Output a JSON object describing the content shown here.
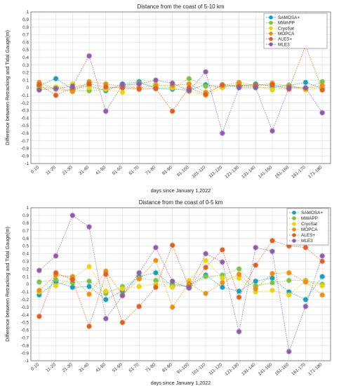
{
  "chart_data": [
    {
      "type": "line",
      "title": "Distance from the coast of 5-10 km",
      "xlabel": "days  since January 1,2022",
      "ylabel": "Difference between Retracking and Tidal Gauge(m)",
      "ylim": [
        -1,
        1
      ],
      "yticks": [
        "-1",
        "-0.9",
        "-0.8",
        "-0.7",
        "-0.6",
        "-0.5",
        "-0.4",
        "-0.3",
        "-0.2",
        "-0.1",
        "0",
        "0.1",
        "0.2",
        "0.3",
        "0.4",
        "0.5",
        "0.6",
        "0.7",
        "0.8",
        "0.9",
        "1"
      ],
      "grid": true,
      "legend_position": "top-right",
      "categories": [
        "0-10",
        "11-20",
        "21-30",
        "31-40",
        "41-50",
        "51-60",
        "61-70",
        "71-80",
        "81-90",
        "91-100",
        "101-110",
        "111-120",
        "121-130",
        "131-140",
        "141-150",
        "151-160",
        "161-170",
        "171-180"
      ],
      "series": [
        {
          "name": "SAMOSA+",
          "color": "#1f9bb5",
          "values": [
            0.03,
            0.12,
            -0.02,
            0.03,
            -0.04,
            0.05,
            0.08,
            -0.01,
            -0.02,
            -0.03,
            0.04,
            0.02,
            0.02,
            0.05,
            0.02,
            0.03,
            0.07,
            -0.01
          ]
        },
        {
          "name": "MWAPP",
          "color": "#7fbf4a",
          "values": [
            0.0,
            0.0,
            -0.04,
            -0.04,
            -0.02,
            0.02,
            0.06,
            0.0,
            0.0,
            0.12,
            0.02,
            0.01,
            0.04,
            0.01,
            0.0,
            0.03,
            -0.01,
            0.08
          ]
        },
        {
          "name": "CryoSat",
          "color": "#e8d21c",
          "values": [
            -0.02,
            0.01,
            0.05,
            0.0,
            -0.02,
            -0.06,
            0.05,
            0.05,
            0.0,
            -0.05,
            -0.1,
            0.0,
            0.05,
            0.02,
            -0.03,
            0.01,
            -0.03,
            0.0
          ]
        },
        {
          "name": "MOPCA",
          "color": "#e8901c",
          "values": [
            0.07,
            -0.02,
            -0.05,
            0.08,
            0.05,
            0.02,
            0.0,
            0.03,
            0.03,
            0.05,
            -0.06,
            0.03,
            0.07,
            0.03,
            0.06,
            0.02,
            -0.01,
            0.03
          ]
        },
        {
          "name": "ALES+",
          "color": "#d9622b",
          "values": [
            0.04,
            -0.1,
            0.0,
            0.05,
            0.01,
            0.0,
            -0.02,
            -0.01,
            -0.31,
            0.0,
            -0.09,
            0.04,
            0.02,
            0.03,
            0.04,
            -0.02,
            0.56,
            -0.03
          ]
        },
        {
          "name": "MLE3",
          "color": "#8e5ea8",
          "values": [
            -0.03,
            -0.01,
            0.02,
            0.42,
            -0.31,
            0.04,
            0.05,
            0.1,
            0.06,
            -0.04,
            0.21,
            -0.6,
            0.0,
            0.0,
            -0.57,
            0.0,
            0.0,
            -0.33
          ]
        }
      ]
    },
    {
      "type": "line",
      "title": "Distance from the coast of 0-5 km",
      "xlabel": "days  since January 1,2022",
      "ylabel": "Difference between Retracking and Tidal Gauge(m)",
      "ylim": [
        -1,
        1
      ],
      "yticks": [
        "-1",
        "-0.9",
        "-0.8",
        "-0.7",
        "-0.6",
        "-0.5",
        "-0.4",
        "-0.3",
        "-0.2",
        "-0.1",
        "0",
        "0.1",
        "0.2",
        "0.3",
        "0.4",
        "0.5",
        "0.6",
        "0.7",
        "0.8",
        "0.9",
        "1"
      ],
      "grid": true,
      "legend_position": "top-right",
      "categories": [
        "0-10",
        "11-20",
        "21-30",
        "31-40",
        "41-50",
        "51-60",
        "61-70",
        "71-80",
        "81-90",
        "91-100",
        "101-110",
        "111-120",
        "121-130",
        "131-140",
        "141-150",
        "151-160",
        "161-170",
        "171-180"
      ],
      "series": [
        {
          "name": "SAMOSA+",
          "color": "#1f9bb5",
          "values": [
            -0.14,
            0.03,
            -0.04,
            -0.03,
            -0.2,
            -0.09,
            0.1,
            0.15,
            -0.02,
            -0.02,
            0.12,
            -0.04,
            -0.09,
            0.04,
            0.08,
            -0.1,
            -0.2,
            0.1
          ]
        },
        {
          "name": "MWAPP",
          "color": "#7fbf4a",
          "values": [
            0.03,
            0.06,
            0.02,
            0.04,
            -0.12,
            -0.03,
            0.08,
            0.05,
            0.01,
            -0.04,
            0.1,
            0.12,
            0.2,
            -0.02,
            0.02,
            0.05,
            0.05,
            0.0
          ]
        },
        {
          "name": "CryoSat",
          "color": "#e8d21c",
          "values": [
            -0.1,
            -0.02,
            0.08,
            0.23,
            -0.09,
            -0.06,
            -0.03,
            0.0,
            -0.04,
            0.05,
            0.31,
            0.08,
            0.08,
            -0.1,
            -0.08,
            -0.14,
            0.04,
            -0.02
          ]
        },
        {
          "name": "MOPCA",
          "color": "#e8901c",
          "values": [
            -0.08,
            0.12,
            0.1,
            -0.13,
            0.17,
            -0.14,
            0.07,
            0.31,
            -0.3,
            0.01,
            -0.12,
            0.02,
            0.13,
            -0.06,
            0.14,
            0.15,
            0.03,
            -0.14
          ]
        },
        {
          "name": "ALES+",
          "color": "#d9622b",
          "values": [
            -0.42,
            0.15,
            0.06,
            -0.55,
            0.13,
            -0.5,
            -0.29,
            -0.04,
            0.51,
            -0.04,
            0.22,
            0.45,
            -0.17,
            0.25,
            0.57,
            0.5,
            0.48,
            0.3
          ]
        },
        {
          "name": "MLE3",
          "color": "#8e5ea8",
          "values": [
            0.18,
            0.37,
            0.9,
            0.75,
            -0.45,
            -0.15,
            0.15,
            0.48,
            0.04,
            -0.05,
            0.4,
            0.29,
            -0.62,
            0.48,
            0.43,
            -0.88,
            -0.29,
            0.37
          ]
        }
      ]
    }
  ]
}
